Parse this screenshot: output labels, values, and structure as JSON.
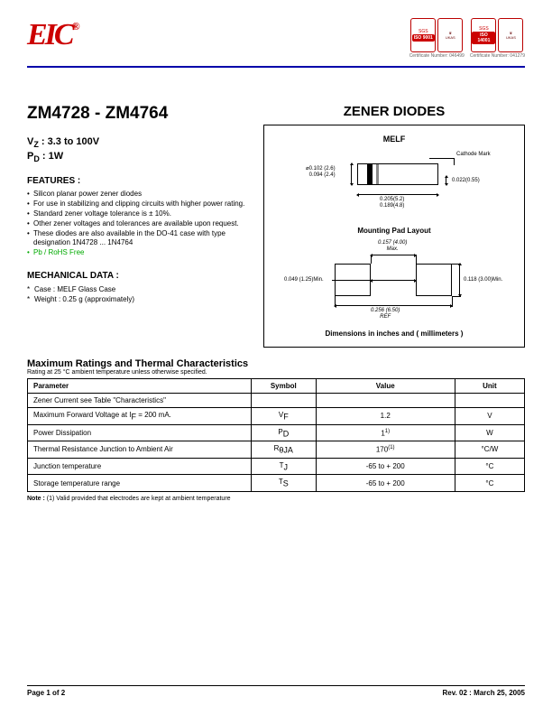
{
  "header": {
    "logo_text": "EIC",
    "logo_reg": "®",
    "certs": [
      {
        "iso": "ISO 9001",
        "cert_num": "Certificate Number: 046499"
      },
      {
        "iso": "ISO 14001",
        "cert_num": "Certificate Number: 041279"
      }
    ],
    "ukas_label": "UKAS"
  },
  "title": "ZM4728 - ZM4764",
  "vz_label": "V",
  "vz_sub": "Z",
  "vz_value": " : 3.3 to 100V",
  "pd_label": "P",
  "pd_sub": "D",
  "pd_value": " : 1W",
  "features_head": "FEATURES :",
  "features": [
    "Silicon planar power zener diodes",
    "For use in stabilizing and clipping circuits with higher power rating.",
    "Standard zener voltage tolerance is ± 10%.",
    "Other zener voltages and tolerances are available upon request.",
    "These diodes are also available in the DO-41 case with type designation 1N4728 ... 1N4764"
  ],
  "rohs": "Pb / RoHS Free",
  "mech_head": "MECHANICAL  DATA :",
  "mech": [
    "Case : MELF Glass Case",
    "Weight : 0.25 g (approximately)"
  ],
  "zener_title": "ZENER DIODES",
  "melf": {
    "title": "MELF",
    "cathode": "Cathode Mark",
    "dim_diam": "0.102 (2.6)\n0.094 (2.4)",
    "dim_lead": "0.022(0.55)",
    "dim_len": "0.205(5.2)\n0.189(4.8)",
    "diam_prefix": "⌀"
  },
  "mount": {
    "title": "Mounting Pad Layout",
    "dim_gap": "0.049 (1.25)Min.",
    "dim_top": "0.157 (4.00)\nMax.",
    "dim_h": "0.118 (3.00)Min.",
    "dim_total": "0.256 (6.50)\nREF"
  },
  "dim_caption": "Dimensions in inches and ( millimeters )",
  "ratings": {
    "title": "Maximum Ratings and Thermal Characteristics",
    "subtitle": "Rating at  25 °C ambient temperature unless otherwise specified.",
    "columns": [
      "Parameter",
      "Symbol",
      "Value",
      "Unit"
    ],
    "col_widths": [
      "45%",
      "13%",
      "28%",
      "14%"
    ],
    "rows": [
      {
        "param": "Zener Current see Table \"Characteristics\"",
        "symbol": "",
        "value": "",
        "unit": ""
      },
      {
        "param": "Maximum Forward Voltage at I",
        "param_sub": "F",
        "param_suffix": " = 200 mA.",
        "symbol": "V",
        "symbol_sub": "F",
        "value": "1.2",
        "unit": "V"
      },
      {
        "param": "Power Dissipation",
        "symbol": "P",
        "symbol_sub": "D",
        "value": "1",
        "value_sup": "1)",
        "unit": "W"
      },
      {
        "param": "Thermal Resistance Junction to Ambient Air",
        "symbol": "R",
        "symbol_sub": "θJA",
        "value": "170",
        "value_sup": "(1)",
        "unit": "°C/W"
      },
      {
        "param": "Junction temperature",
        "symbol": "T",
        "symbol_sub": "J",
        "value": "-65 to + 200",
        "unit": "°C"
      },
      {
        "param": "Storage temperature range",
        "symbol": "T",
        "symbol_sub": "S",
        "value": "-65 to + 200",
        "unit": "°C"
      }
    ],
    "note_label": "Note :",
    "note": " (1) Valid provided that electrodes are kept at ambient temperature"
  },
  "footer": {
    "page": "Page 1 of 2",
    "rev": "Rev. 02 : March 25, 2005"
  }
}
